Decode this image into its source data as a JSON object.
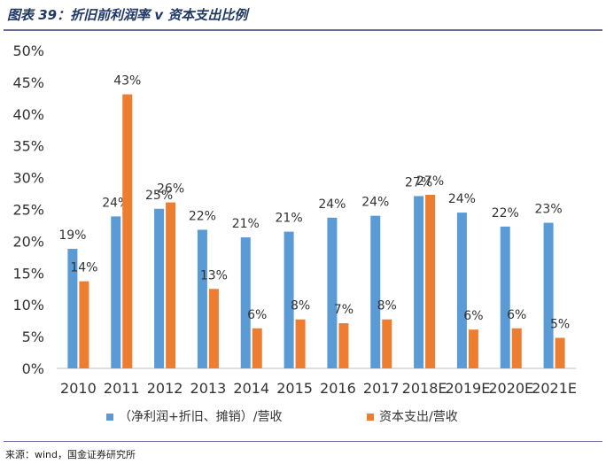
{
  "title": "图表 39：折旧前利润率 v 资本支出比例",
  "source": "来源：wind，国金证券研究所",
  "chart_data": {
    "type": "bar",
    "categories": [
      "2010",
      "2011",
      "2012",
      "2013",
      "2014",
      "2015",
      "2016",
      "2017",
      "2018E",
      "2019E",
      "2020E",
      "2021E"
    ],
    "series": [
      {
        "name": "（净利润+折旧、摊销）/营收",
        "color": "#5b9bd5",
        "values": [
          18.8,
          23.9,
          25.1,
          21.8,
          20.6,
          21.5,
          23.7,
          24.0,
          27.1,
          24.5,
          22.3,
          22.9
        ],
        "labels": [
          "19%",
          "24%",
          "25%",
          "22%",
          "21%",
          "21%",
          "24%",
          "24%",
          "27%",
          "24%",
          "22%",
          "23%"
        ]
      },
      {
        "name": "资本支出/营收",
        "color": "#ed7d31",
        "values": [
          13.7,
          43.1,
          26.1,
          12.5,
          6.3,
          7.7,
          7.1,
          7.7,
          27.3,
          6.1,
          6.3,
          4.8
        ],
        "labels": [
          "14%",
          "43%",
          "26%",
          "13%",
          "6%",
          "8%",
          "7%",
          "8%",
          "27%",
          "6%",
          "6%",
          "5%"
        ]
      }
    ],
    "ylim": [
      0,
      50
    ],
    "yticks": [
      "0%",
      "5%",
      "10%",
      "15%",
      "20%",
      "25%",
      "30%",
      "35%",
      "40%",
      "45%",
      "50%"
    ],
    "legend": "bottom"
  }
}
